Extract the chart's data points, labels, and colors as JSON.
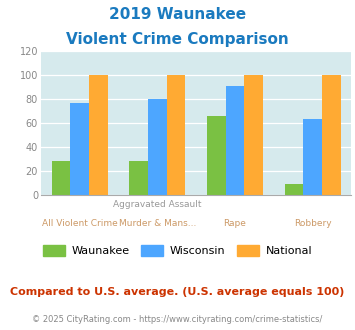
{
  "title_line1": "2019 Waunakee",
  "title_line2": "Violent Crime Comparison",
  "top_labels": [
    "",
    "Aggravated Assault",
    "",
    ""
  ],
  "bottom_labels": [
    "All Violent Crime",
    "Murder & Mans...",
    "Rape",
    "Robbery"
  ],
  "waunakee": [
    28,
    28,
    66,
    9
  ],
  "wisconsin": [
    77,
    80,
    91,
    63
  ],
  "national": [
    100,
    100,
    100,
    100
  ],
  "waunakee_color": "#7ac143",
  "wisconsin_color": "#4da6ff",
  "national_color": "#ffaa33",
  "ylim": [
    0,
    120
  ],
  "yticks": [
    0,
    20,
    40,
    60,
    80,
    100,
    120
  ],
  "bg_color": "#d6eaed",
  "title_color": "#1a7abf",
  "footer_text": "Compared to U.S. average. (U.S. average equals 100)",
  "footer_color": "#cc3300",
  "copyright_text": "© 2025 CityRating.com - https://www.cityrating.com/crime-statistics/",
  "copyright_color": "#888888",
  "legend_labels": [
    "Waunakee",
    "Wisconsin",
    "National"
  ],
  "xlabel_top_color": "#999999",
  "xlabel_bottom_color": "#cc9966"
}
